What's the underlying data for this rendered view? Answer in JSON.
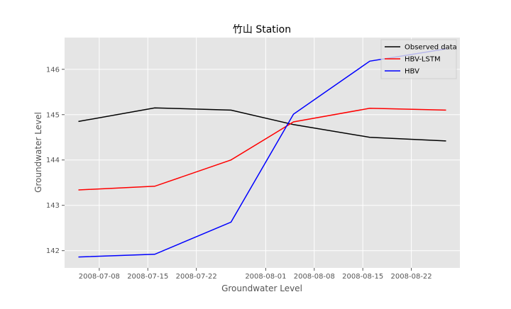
{
  "chart_data": {
    "type": "line",
    "title": "竹山 Station",
    "xlabel": "Groundwater Level",
    "ylabel": "Groundwater Level",
    "x": [
      "2008-07-05",
      "2008-07-16",
      "2008-07-27",
      "2008-08-05",
      "2008-08-16",
      "2008-08-27"
    ],
    "x_ticks": [
      "2008-07-08",
      "2008-07-15",
      "2008-07-22",
      "2008-08-01",
      "2008-08-08",
      "2008-08-15",
      "2008-08-22"
    ],
    "y_ticks": [
      142,
      143,
      144,
      145,
      146
    ],
    "xlim": [
      "2008-07-03",
      "2008-08-29"
    ],
    "ylim": [
      141.62,
      146.7
    ],
    "grid": true,
    "legend_position": "top-right",
    "series": [
      {
        "name": "Observed data",
        "color": "#000000",
        "values": [
          144.85,
          145.15,
          145.1,
          144.78,
          144.5,
          144.42
        ]
      },
      {
        "name": "HBV-LSTM",
        "color": "#ff0000",
        "values": [
          143.34,
          143.42,
          144.0,
          144.84,
          145.14,
          145.1
        ]
      },
      {
        "name": "HBV",
        "color": "#0000ff",
        "values": [
          141.86,
          141.92,
          142.63,
          145.01,
          146.18,
          146.45
        ]
      }
    ]
  }
}
